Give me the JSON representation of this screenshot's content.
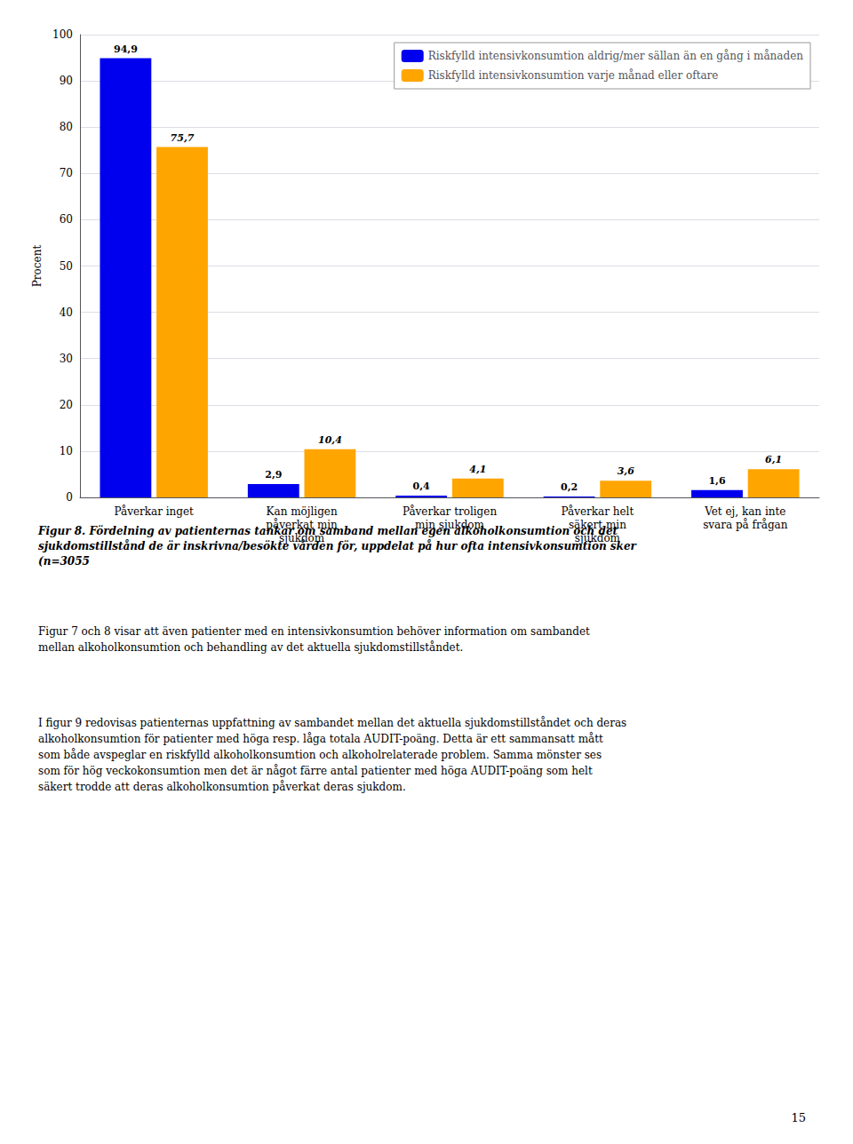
{
  "chart_data": {
    "type": "bar",
    "categories": [
      "Påverkar inget",
      "Kan möjligen\npåverkat min\nsjukdom",
      "Påverkar troligen\nmin sjukdom",
      "Påverkar helt\nsäkert min\nsjukdom",
      "Vet ej, kan inte\nsvara på frågan"
    ],
    "series": [
      {
        "name": "Riskfylld intensivkonsumtion aldrig/mer sällan än en gång i månaden",
        "color": "#0000EE",
        "values": [
          94.9,
          2.9,
          0.4,
          0.2,
          1.6
        ],
        "value_labels": [
          "94,9",
          "2,9",
          "0,4",
          "0,2",
          "1,6"
        ]
      },
      {
        "name": "Riskfylld intensivkonsumtion varje månad eller oftare",
        "color": "#FFA500",
        "values": [
          75.7,
          10.4,
          4.1,
          3.6,
          6.1
        ],
        "value_labels": [
          "75,7",
          "10,4",
          "4,1",
          "3,6",
          "6,1"
        ]
      }
    ],
    "ylabel": "Procent",
    "ylim": [
      0,
      100
    ],
    "yticks": [
      0,
      10,
      20,
      30,
      40,
      50,
      60,
      70,
      80,
      90,
      100
    ],
    "grid": true,
    "legend": "upper right",
    "data_labels": true,
    "annotations": [
      "Figur 8. Fördelning av patienternas tankar om samband mellan egen alkoholkonsumtion och det\nsjukdomstillstånd de är inskrivna/besökte vården för, uppdelat på hur ofta intensivkonsumtion sker\n(n=3055",
      "Figur 7 och 8 visar att även patienter med en intensivkonsumtion behöver information om sambandet\nmellan alkoholkonsumtion och behandling av det aktuella sjukdomstillståndet.",
      "I figur 9 redovisas patienternas uppfattning av sambandet mellan det aktuella sjukdomstillståndet och deras\nalkoholkonsumtion för patienter med höga resp. låga totala AUDIT-poäng. Detta är ett sammansatt mått\nsom både avspeglar en riskfylld alkoholkonsumtion och alkoholrelaterade problem. Samma mönster ses\nsom för hög veckokonsumtion men det är något färre antal patienter med höga AUDIT-poäng som helt\nsäkert trodde att deras alkoholkonsumtion påverkat deras sjukdom.",
      "15"
    ]
  }
}
